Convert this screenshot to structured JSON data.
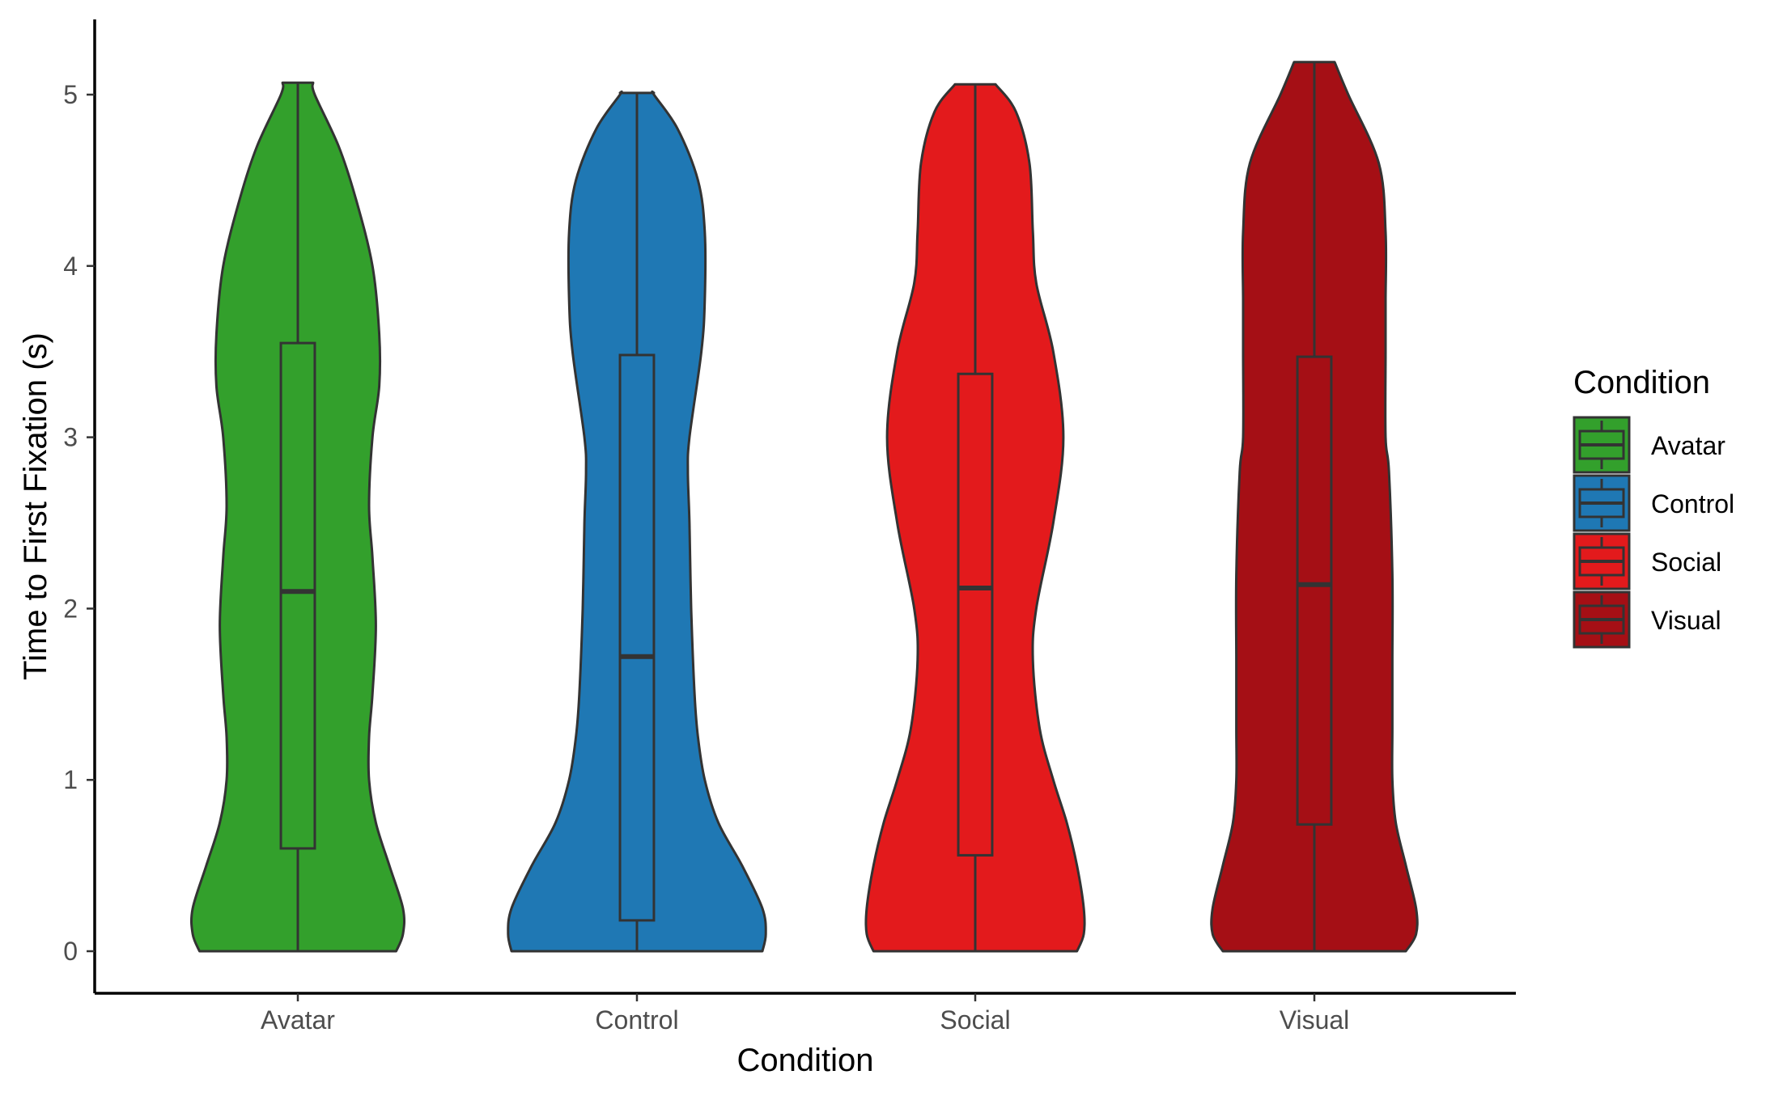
{
  "chart_data": {
    "type": "violin",
    "title": "",
    "xlabel": "Condition",
    "ylabel": "Time to First Fixation (s)",
    "ylim": [
      -0.25,
      5.45
    ],
    "yticks": [
      0,
      1,
      2,
      3,
      4,
      5
    ],
    "categories": [
      "Avatar",
      "Control",
      "Social",
      "Visual"
    ],
    "grid": false,
    "legend": {
      "title": "Condition",
      "position": "right"
    },
    "series": [
      {
        "name": "Avatar",
        "color": "#33a02c",
        "boxplot": {
          "min": 0,
          "q1": 0.6,
          "median": 2.1,
          "q3": 3.55,
          "max": 5.07
        },
        "violin": {
          "y": [
            0,
            0.1,
            0.25,
            0.5,
            0.75,
            1.0,
            1.25,
            1.5,
            1.9,
            2.3,
            2.6,
            3.0,
            3.3,
            3.6,
            4.0,
            4.4,
            4.7,
            5.0,
            5.07
          ],
          "half_width": [
            0.29,
            0.31,
            0.31,
            0.27,
            0.23,
            0.21,
            0.21,
            0.22,
            0.23,
            0.22,
            0.21,
            0.22,
            0.24,
            0.24,
            0.22,
            0.17,
            0.12,
            0.05,
            0.045
          ]
        }
      },
      {
        "name": "Control",
        "color": "#1f78b4",
        "boxplot": {
          "min": 0,
          "q1": 0.18,
          "median": 1.72,
          "q3": 3.48,
          "max": 5.01
        },
        "violin": {
          "y": [
            0,
            0.1,
            0.25,
            0.5,
            0.75,
            1.0,
            1.25,
            1.5,
            2.0,
            2.5,
            2.8,
            3.0,
            3.5,
            3.8,
            4.2,
            4.5,
            4.8,
            5.0,
            5.01
          ],
          "half_width": [
            0.37,
            0.38,
            0.37,
            0.31,
            0.24,
            0.2,
            0.18,
            0.17,
            0.16,
            0.155,
            0.15,
            0.155,
            0.19,
            0.2,
            0.2,
            0.18,
            0.12,
            0.05,
            0.05
          ]
        }
      },
      {
        "name": "Social",
        "color": "#e31a1c",
        "boxplot": {
          "min": 0,
          "q1": 0.56,
          "median": 2.12,
          "q3": 3.37,
          "max": 5.06
        },
        "violin": {
          "y": [
            0,
            0.1,
            0.25,
            0.5,
            0.75,
            1.0,
            1.3,
            1.7,
            2.0,
            2.5,
            3.0,
            3.5,
            3.9,
            4.2,
            4.6,
            4.9,
            5.06
          ],
          "half_width": [
            0.3,
            0.32,
            0.32,
            0.3,
            0.27,
            0.23,
            0.19,
            0.17,
            0.18,
            0.23,
            0.26,
            0.23,
            0.18,
            0.17,
            0.16,
            0.12,
            0.06
          ]
        }
      },
      {
        "name": "Visual",
        "color": "#a50f15",
        "boxplot": {
          "min": 0,
          "q1": 0.74,
          "median": 2.14,
          "q3": 3.47,
          "max": 5.19
        },
        "violin": {
          "y": [
            0,
            0.1,
            0.25,
            0.5,
            0.75,
            1.0,
            1.3,
            1.7,
            2.2,
            2.8,
            3.0,
            3.5,
            3.8,
            4.2,
            4.6,
            5.0,
            5.19
          ],
          "half_width": [
            0.27,
            0.3,
            0.3,
            0.27,
            0.24,
            0.23,
            0.23,
            0.23,
            0.23,
            0.22,
            0.21,
            0.21,
            0.21,
            0.21,
            0.19,
            0.1,
            0.06
          ]
        }
      }
    ]
  }
}
